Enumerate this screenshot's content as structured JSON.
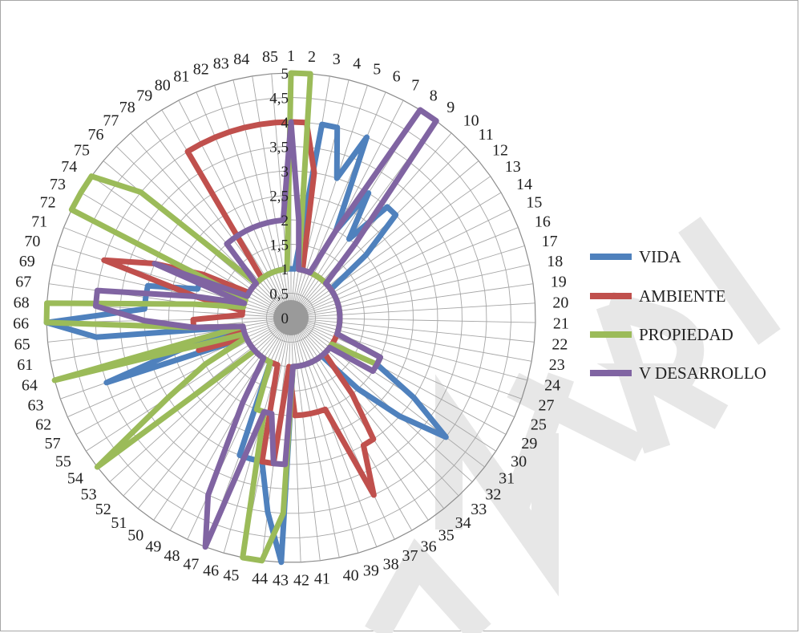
{
  "chart_data": {
    "type": "radar",
    "categories": [
      "1",
      "2",
      "3",
      "4",
      "5",
      "6",
      "7",
      "8",
      "9",
      "10",
      "11",
      "12",
      "13",
      "14",
      "15",
      "16",
      "17",
      "18",
      "19",
      "20",
      "21",
      "22",
      "23",
      "24",
      "27",
      "25",
      "29",
      "30",
      "31",
      "32",
      "33",
      "34",
      "35",
      "36",
      "37",
      "38",
      "39",
      "40",
      "41",
      "42",
      "43",
      "44",
      "45",
      "46",
      "47",
      "48",
      "49",
      "50",
      "51",
      "52",
      "53",
      "54",
      "55",
      "57",
      "62",
      "63",
      "64",
      "61",
      "65",
      "66",
      "68",
      "67",
      "69",
      "70",
      "71",
      "72",
      "73",
      "74",
      "75",
      "76",
      "77",
      "78",
      "79",
      "80",
      "81",
      "82",
      "83",
      "84",
      "85"
    ],
    "rlim": [
      0,
      5
    ],
    "r_ticks": [
      "0",
      "0,5",
      "1",
      "1,5",
      "2",
      "2,5",
      "3",
      "3,5",
      "4",
      "4,5",
      "5"
    ],
    "grid": true,
    "legend_position": "right",
    "series": [
      {
        "name": "VIDA",
        "color": "#4f81bd",
        "values": [
          1,
          1,
          4,
          4,
          3,
          4,
          2,
          3,
          2,
          3,
          3,
          2,
          1,
          1,
          1,
          1,
          1,
          1,
          1,
          1,
          1,
          1,
          1,
          1,
          1,
          2,
          2,
          3,
          4,
          3,
          2,
          1,
          1,
          1,
          1,
          1,
          1,
          1,
          1,
          1,
          5,
          4,
          3,
          3,
          3,
          1,
          1,
          1,
          1,
          1,
          1,
          1,
          1,
          1,
          1,
          4,
          2,
          1,
          4,
          5,
          3,
          3,
          3,
          2,
          2,
          1,
          1,
          1,
          1,
          1,
          1,
          1,
          1,
          1,
          1,
          1,
          1,
          1,
          1
        ]
      },
      {
        "name": "AMBIENTE",
        "color": "#c0504d",
        "values": [
          4,
          4,
          3,
          1,
          1,
          1,
          1,
          1,
          1,
          1,
          1,
          1,
          1,
          1,
          1,
          1,
          1,
          1,
          1,
          1,
          1,
          1,
          1,
          1,
          1,
          1,
          1,
          1,
          1,
          1,
          1,
          2,
          3,
          3,
          4,
          2,
          2,
          2,
          2,
          2,
          1,
          3,
          3,
          1,
          1,
          1,
          1,
          1,
          1,
          1,
          1,
          1,
          1,
          1,
          1,
          2,
          1,
          1,
          2,
          2,
          1,
          1,
          2,
          4,
          3,
          2,
          1,
          1,
          1,
          1,
          1,
          1,
          4,
          4,
          4,
          4,
          4,
          4,
          4
        ]
      },
      {
        "name": "PROPIEDAD",
        "color": "#9bbb59",
        "values": [
          5,
          5,
          1,
          1,
          1,
          1,
          1,
          1,
          1,
          1,
          1,
          1,
          1,
          1,
          1,
          1,
          1,
          1,
          1,
          1,
          1,
          1,
          1,
          1,
          1,
          2,
          2,
          1,
          1,
          1,
          1,
          1,
          1,
          1,
          1,
          1,
          1,
          1,
          1,
          1,
          4,
          5,
          5,
          2,
          2,
          1,
          1,
          1,
          1,
          1,
          1,
          5,
          3,
          2,
          1,
          1,
          5,
          1,
          2,
          5,
          5,
          2,
          1,
          1,
          1,
          5,
          5,
          5,
          4,
          1,
          1,
          1,
          1,
          1,
          1,
          1,
          1,
          1,
          1
        ]
      },
      {
        "name": "V DESARROLLO",
        "color": "#8064a2",
        "values": [
          4,
          2,
          1,
          1,
          1,
          1,
          2,
          5,
          5,
          2,
          1,
          1,
          1,
          1,
          1,
          1,
          1,
          1,
          1,
          1,
          1,
          1,
          1,
          1,
          1,
          2,
          2,
          2,
          1,
          1,
          1,
          1,
          1,
          1,
          1,
          1,
          1,
          1,
          1,
          1,
          3,
          3,
          2,
          2,
          5,
          4,
          2,
          1,
          1,
          1,
          1,
          1,
          1,
          1,
          1,
          1,
          1,
          1,
          2,
          3,
          4,
          4,
          2,
          1,
          3,
          1,
          1,
          1,
          1,
          1,
          2,
          2,
          2,
          2,
          2,
          2,
          2,
          2,
          2
        ]
      }
    ]
  }
}
